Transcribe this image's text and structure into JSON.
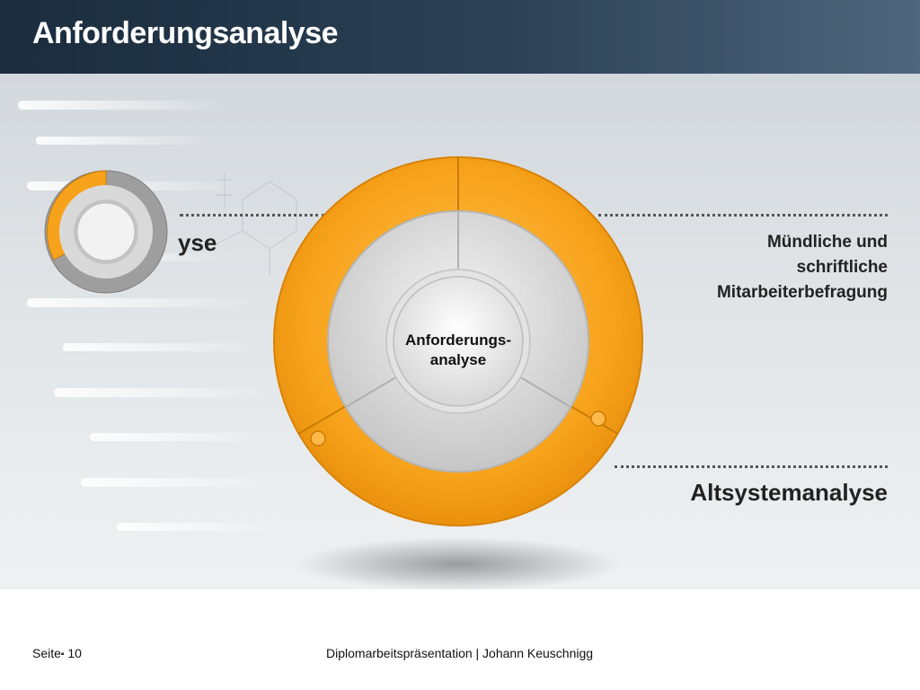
{
  "slide": {
    "title": "Anforderungsanalyse",
    "diagram": {
      "center_text_line1": "Anforderungs-",
      "center_text_line2": "analyse",
      "label_right_top_line1": "Mündliche und",
      "label_right_top_line2": "schriftliche",
      "label_right_top_line3": "Mitarbeiterbefragung",
      "label_right_bottom": "Altsystemanalyse",
      "label_left_visible_fragment": "yse"
    },
    "colors": {
      "header": "#2c4156",
      "accent_orange": "#f7a21b",
      "ring_gray": "#c9c9c9"
    }
  },
  "footer": {
    "page_label": "Seite",
    "page_number": "10",
    "center_text": "Diplomarbeitspräsentation | Johann Keuschnigg"
  }
}
